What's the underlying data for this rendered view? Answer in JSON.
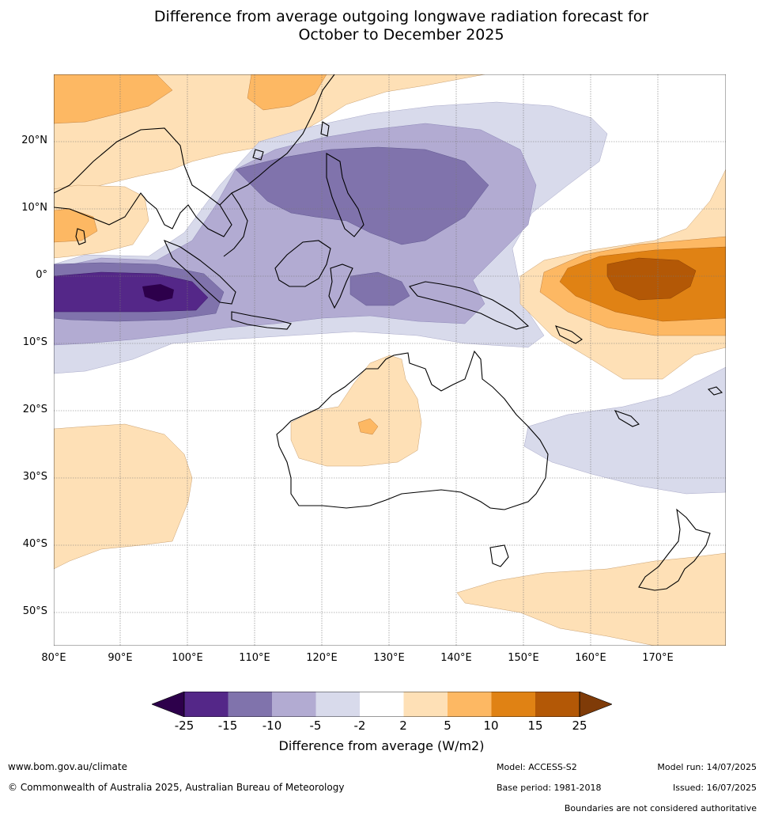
{
  "title": {
    "line1": "Difference from average outgoing longwave radiation forecast for",
    "line2": "October to December 2025"
  },
  "map": {
    "lat_labels": [
      "20°N",
      "10°N",
      "0°",
      "10°S",
      "20°S",
      "30°S",
      "40°S",
      "50°S"
    ],
    "lon_labels": [
      "80°E",
      "90°E",
      "100°E",
      "110°E",
      "120°E",
      "130°E",
      "140°E",
      "150°E",
      "160°E",
      "170°E"
    ],
    "colors": {
      "neg25": "#2d004b",
      "neg15_25": "#542788",
      "neg10_15": "#8073ac",
      "neg5_10": "#b2abd2",
      "neg2_5": "#d8daeb",
      "neutral": "#ffffff",
      "pos2_5": "#fee0b6",
      "pos5_10": "#fdb863",
      "pos10_15": "#e08214",
      "pos15_25": "#b35806",
      "pos25": "#7f3b08"
    }
  },
  "colorbar": {
    "ticks": [
      "-25",
      "-15",
      "-10",
      "-5",
      "-2",
      "2",
      "5",
      "10",
      "15",
      "25"
    ],
    "label": "Difference from average (W/m2)"
  },
  "footer": {
    "website": "www.bom.gov.au/climate",
    "copyright": "© Commonwealth of Australia 2025, Australian Bureau of Meteorology",
    "model": "Model: ACCESS-S2",
    "base_period": "Base period: 1981-2018",
    "model_run": "Model run: 14/07/2025",
    "issued": "Issued: 16/07/2025",
    "boundaries": "Boundaries are not considered authoritative"
  }
}
